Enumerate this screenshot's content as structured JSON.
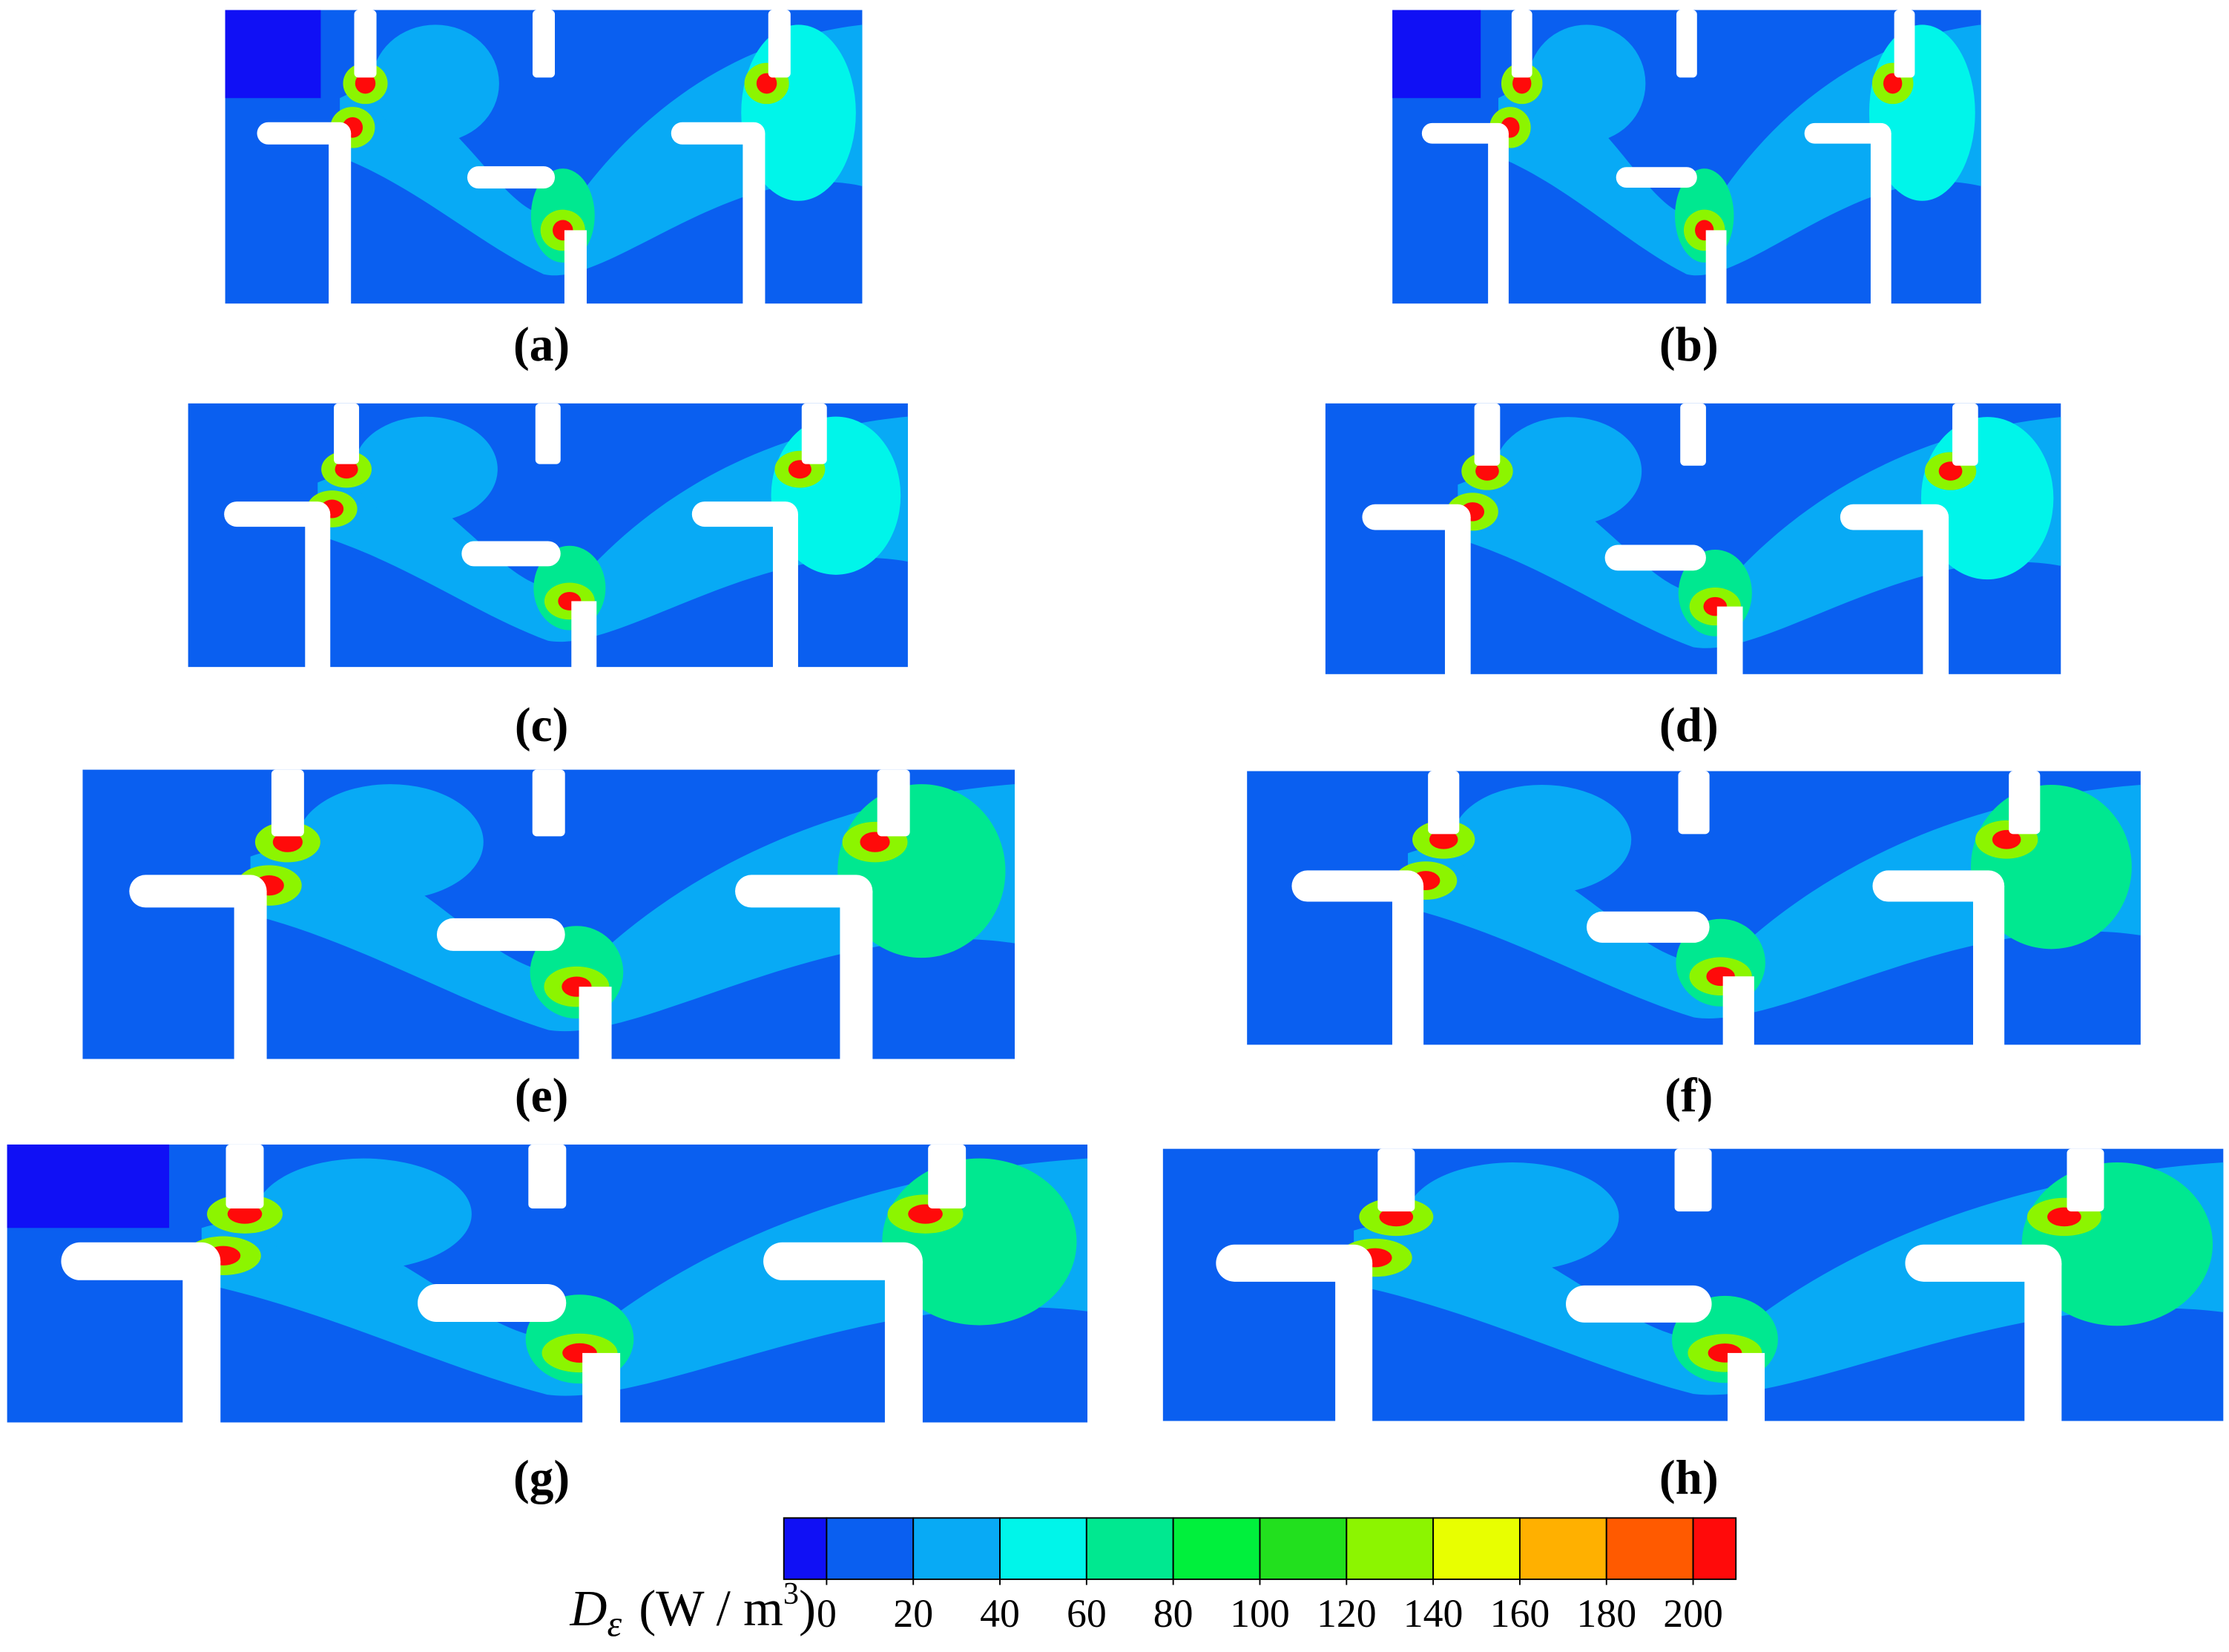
{
  "panels": [
    {
      "label": "(a)"
    },
    {
      "label": "(b)"
    },
    {
      "label": "(c)"
    },
    {
      "label": "(d)"
    },
    {
      "label": "(e)"
    },
    {
      "label": "(f)"
    },
    {
      "label": "(g)"
    },
    {
      "label": "(h)"
    }
  ],
  "colorbar": {
    "symbol": "D",
    "subscript": "ε",
    "unit": "(W / m",
    "superscript": "3",
    "unit_close": ")",
    "ticks": [
      0,
      20,
      40,
      60,
      80,
      100,
      120,
      140,
      160,
      180,
      200
    ],
    "colors": [
      "#1010f5",
      "#0a5ff0",
      "#08aaf5",
      "#00f5ea",
      "#00e890",
      "#00f03c",
      "#22e01e",
      "#8cf500",
      "#e8ff00",
      "#ffb000",
      "#ff5a00",
      "#ff0a0a"
    ]
  }
}
